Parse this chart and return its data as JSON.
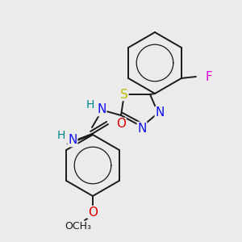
{
  "bg_color": "#ebebeb",
  "bond_color": "#1a1a1a",
  "bond_width": 1.4,
  "dbo": 0.012,
  "atom_colors": {
    "N": "#1010ee",
    "O": "#dd0000",
    "S": "#bbbb00",
    "F": "#dd00dd",
    "H": "#008888",
    "C": "#1a1a1a"
  },
  "fs": 10
}
